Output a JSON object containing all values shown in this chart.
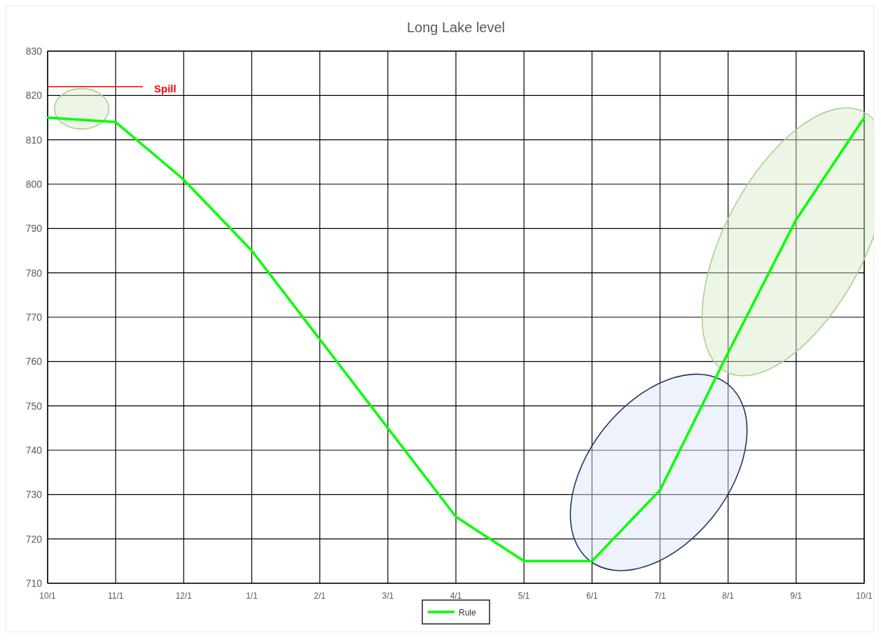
{
  "chart_data": {
    "type": "line",
    "title": "Long Lake level",
    "categories": [
      "10/1",
      "11/1",
      "12/1",
      "1/1",
      "2/1",
      "3/1",
      "4/1",
      "5/1",
      "6/1",
      "7/1",
      "8/1",
      "9/1",
      "10/1"
    ],
    "series": [
      {
        "name": "Rule",
        "color": "#00ff00",
        "values": [
          815,
          814,
          801,
          785,
          765,
          745,
          725,
          715,
          715,
          731,
          762,
          792,
          815
        ]
      }
    ],
    "ylim": [
      710,
      830
    ],
    "yticks": [
      710,
      720,
      730,
      740,
      750,
      760,
      770,
      780,
      790,
      800,
      810,
      820,
      830
    ],
    "grid": true,
    "legend": "bottom",
    "marker": "none",
    "line_style": "solid",
    "ref_lines": [
      {
        "axis": "y",
        "value": 822,
        "label": "Spill",
        "color": "#ff0000"
      }
    ]
  }
}
